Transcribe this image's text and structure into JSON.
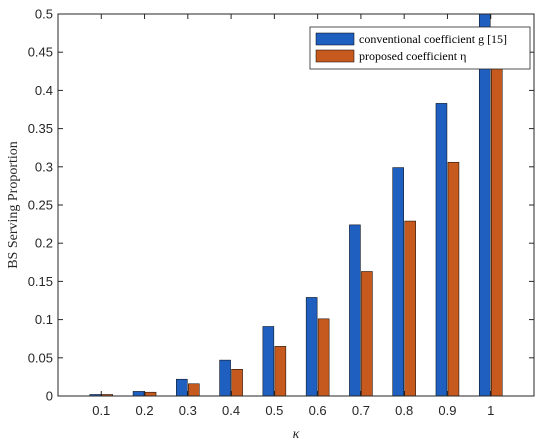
{
  "chart_data": {
    "type": "bar",
    "categories": [
      "0.1",
      "0.2",
      "0.3",
      "0.4",
      "0.5",
      "0.6",
      "0.7",
      "0.8",
      "0.9",
      "1"
    ],
    "series": [
      {
        "name": "conventional coefficient g [15]",
        "color": "#1f5fbf",
        "values": [
          0.002,
          0.006,
          0.022,
          0.047,
          0.091,
          0.129,
          0.224,
          0.299,
          0.383,
          0.5
        ]
      },
      {
        "name": "proposed coefficient η",
        "color": "#c65a1e",
        "values": [
          0.002,
          0.005,
          0.016,
          0.035,
          0.065,
          0.101,
          0.163,
          0.229,
          0.306,
          0.441
        ]
      }
    ],
    "xlabel": "κ",
    "ylabel": "BS Serving Proportion",
    "ylim": [
      0,
      0.5
    ],
    "yticks": [
      "0",
      "0.05",
      "0.1",
      "0.15",
      "0.2",
      "0.25",
      "0.3",
      "0.35",
      "0.4",
      "0.45",
      "0.5"
    ],
    "grid": false,
    "legend_position": "top-right"
  }
}
